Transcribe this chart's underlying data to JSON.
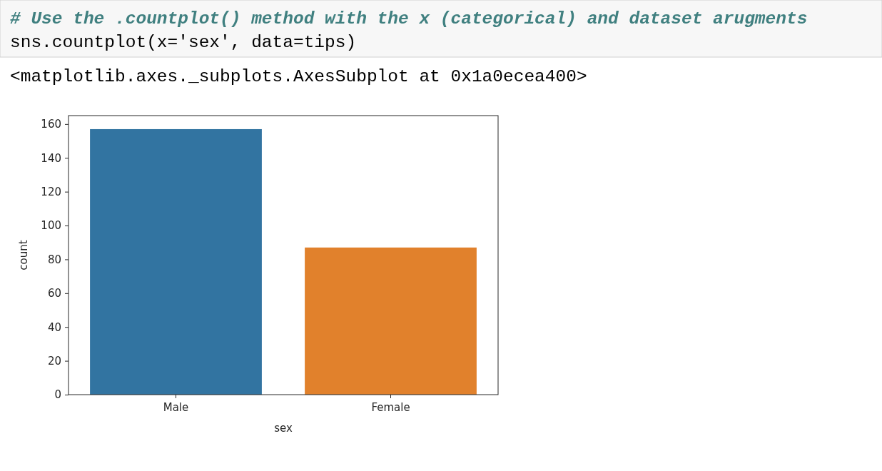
{
  "chart_data": {
    "type": "bar",
    "categories": [
      "Male",
      "Female"
    ],
    "values": [
      157,
      87
    ],
    "colors": [
      "#3274a1",
      "#e1812c"
    ],
    "xlabel": "sex",
    "ylabel": "count",
    "ylim": [
      0,
      165
    ],
    "yticks": [
      0,
      20,
      40,
      60,
      80,
      100,
      120,
      140,
      160
    ],
    "grid": false,
    "annotations": [
      "# Use the .countplot() method with the x (categorical) and dataset arugments",
      "sns.countplot(x='sex', data=tips)",
      "<matplotlib.axes._subplots.AxesSubplot at 0x1a0ecea400>"
    ]
  }
}
